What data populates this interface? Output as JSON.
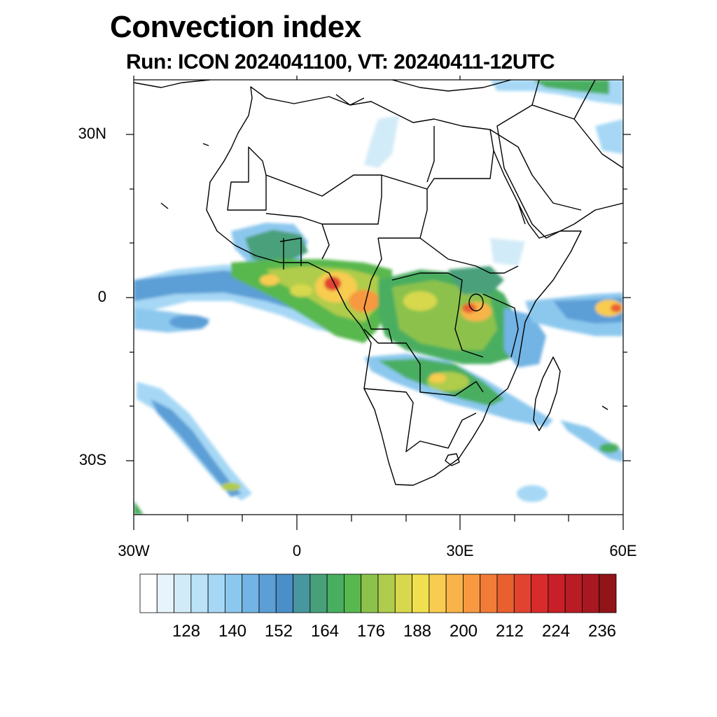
{
  "title": "Convection index",
  "subtitle": "Run: ICON 2024041100,  VT: 20240411-12UTC",
  "map": {
    "lon_range": [
      -30,
      60
    ],
    "lat_range": [
      -40,
      40
    ],
    "lat_ticks": [
      {
        "label": "30N",
        "lat": 30
      },
      {
        "label": "0",
        "lat": 0
      },
      {
        "label": "30S",
        "lat": -30
      }
    ],
    "lon_ticks": [
      {
        "label": "30W",
        "lon": -30
      },
      {
        "label": "0",
        "lon": 0
      },
      {
        "label": "30E",
        "lon": 30
      },
      {
        "label": "60E",
        "lon": 60
      }
    ]
  },
  "colorbar": {
    "colors": [
      "#ffffff",
      "#e8f4fc",
      "#d2ebf8",
      "#bce2f7",
      "#a6d8f5",
      "#8cc8ee",
      "#72b4e4",
      "#5c9ed6",
      "#4a8fc8",
      "#4896a0",
      "#48a07a",
      "#48ae60",
      "#58b84e",
      "#8cc24c",
      "#b0cc4c",
      "#d8d84e",
      "#f0e050",
      "#f8cc50",
      "#f8b448",
      "#f89840",
      "#f07c38",
      "#e86030",
      "#e04430",
      "#d82c2c",
      "#c82028",
      "#b81c24",
      "#a81820",
      "#901418"
    ],
    "labels": [
      "128",
      "140",
      "152",
      "164",
      "176",
      "188",
      "200",
      "212",
      "224",
      "236"
    ]
  }
}
